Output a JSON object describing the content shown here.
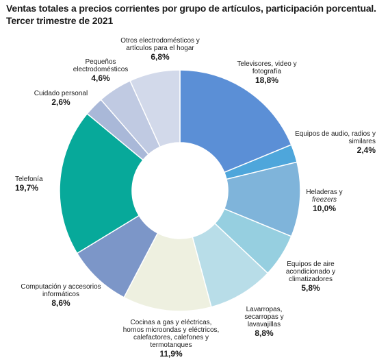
{
  "title_line1": "Ventas totales a precios corrientes por grupo de artículos, participación porcentual.",
  "title_line2": "Tercer trimestre de 2021",
  "chart_data": {
    "type": "pie",
    "title": "Ventas totales a precios corrientes por grupo de artículos, participación porcentual. Tercer trimestre de 2021",
    "donut": true,
    "start": "12 o'clock",
    "direction": "clockwise",
    "slices": [
      {
        "label": "Televisores, video y fotografía",
        "value": 18.8,
        "value_label": "18,8%",
        "color": "#5b8fd6"
      },
      {
        "label": "Equipos de audio, radios y similares",
        "value": 2.4,
        "value_label": "2,4%",
        "color": "#4ea6db"
      },
      {
        "label": "Heladeras y freezers",
        "value": 10.0,
        "value_label": "10,0%",
        "color": "#7fb4da"
      },
      {
        "label": "Equipos de aire acondicionado y climatizadores",
        "value": 5.8,
        "value_label": "5,8%",
        "color": "#96cfe0"
      },
      {
        "label": "Lavarropas, secarropas y lavavajillas",
        "value": 8.8,
        "value_label": "8,8%",
        "color": "#b8dde8"
      },
      {
        "label": "Cocinas a gas y eléctricas, hornos microondas y eléctricos, calefactores, calefones y termotanques",
        "value": 11.9,
        "value_label": "11,9%",
        "color": "#eef0e0"
      },
      {
        "label": "Computación y accesorios informáticos",
        "value": 8.6,
        "value_label": "8,6%",
        "color": "#7c96c8"
      },
      {
        "label": "Telefonía",
        "value": 19.7,
        "value_label": "19,7%",
        "color": "#07a99a"
      },
      {
        "label": "Cuidado personal",
        "value": 2.6,
        "value_label": "2,6%",
        "color": "#a9b8d8"
      },
      {
        "label": "Pequeños electrodomésticos",
        "value": 4.6,
        "value_label": "4,6%",
        "color": "#c0cae2"
      },
      {
        "label": "Otros electrodomésticos y artículos para el hogar",
        "value": 6.8,
        "value_label": "6,8%",
        "color": "#d2d9ea"
      }
    ]
  },
  "labels": {
    "tv": {
      "l1": "Televisores, video y",
      "l2": "fotografía"
    },
    "audio": {
      "l1": "Equipos de audio, radios y",
      "l2": "similares"
    },
    "heladeras": {
      "l1": "Heladeras y",
      "l2": "freezers"
    },
    "aire": {
      "l1": "Equipos de aire",
      "l2": "acondicionado y",
      "l3": "climatizadores"
    },
    "lavarropas": {
      "l1": "Lavarropas,",
      "l2": "secarropas y",
      "l3": "lavavajillas"
    },
    "cocinas": {
      "l1": "Cocinas a gas y eléctricas,",
      "l2": "hornos microondas y eléctricos,",
      "l3": "calefactores, calefones y",
      "l4": "termotanques"
    },
    "computacion": {
      "l1": "Computación y accesorios",
      "l2": "informáticos"
    },
    "telefonia": {
      "l1": "Telefonía"
    },
    "cuidado": {
      "l1": "Cuidado personal"
    },
    "pequenos": {
      "l1": "Pequeños",
      "l2": "electrodomésticos"
    },
    "otros": {
      "l1": "Otros electrodomésticos y",
      "l2": "artículos para el hogar"
    }
  }
}
